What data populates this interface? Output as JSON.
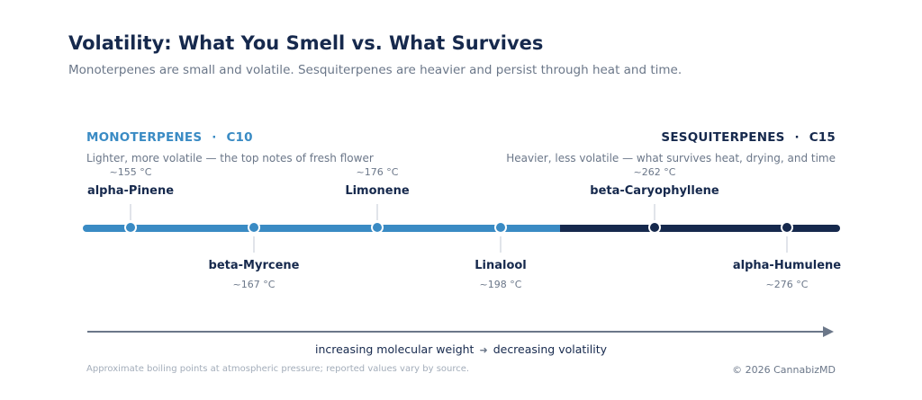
{
  "title": "Volatility: What You Smell vs. What Survives",
  "subtitle": "Monoterpenes are small and volatile. Sesquiterpenes are heavier and persist through heat and time.",
  "groups": {
    "mono": {
      "heading": "MONOTERPENES",
      "separator": "·",
      "formula": "C10",
      "description": "Lighter, more volatile — the top notes of fresh flower",
      "color": "#3a8bc4"
    },
    "sesq": {
      "heading": "SESQUITERPENES",
      "separator": "·",
      "formula": "C15",
      "description": "Heavier, less volatile — what survives heat, drying, and time",
      "color": "#16294d"
    }
  },
  "terpenes": [
    {
      "name": "alpha-Pinene",
      "bp": "~155 °C",
      "group": "mono"
    },
    {
      "name": "beta-Myrcene",
      "bp": "~167 °C",
      "group": "mono"
    },
    {
      "name": "Limonene",
      "bp": "~176 °C",
      "group": "mono"
    },
    {
      "name": "Linalool",
      "bp": "~198 °C",
      "group": "mono"
    },
    {
      "name": "beta-Caryophyllene",
      "bp": "~262 °C",
      "group": "sesq"
    },
    {
      "name": "alpha-Humulene",
      "bp": "~276 °C",
      "group": "sesq"
    }
  ],
  "axis": {
    "left_label": "increasing molecular weight",
    "arrow": "➜",
    "right_label": "decreasing volatility"
  },
  "footnote": "Approximate boiling points at atmospheric pressure; reported values vary by source.",
  "copyright": "© 2026 CannabizMD"
}
